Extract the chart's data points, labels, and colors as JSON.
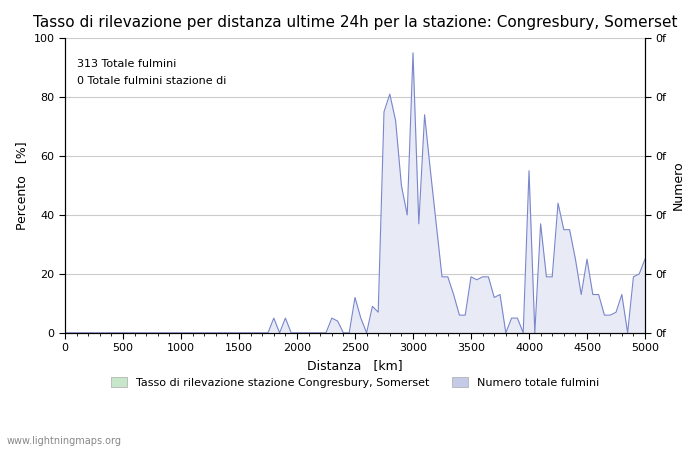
{
  "title": "Tasso di rilevazione per distanza ultime 24h per la stazione: Congresbury, Somerset",
  "xlabel": "Distanza   [km]",
  "ylabel_left": "Percento   [%]",
  "ylabel_right": "Numero",
  "annotation_line1": "313 Totale fulmini",
  "annotation_line2": "0 Totale fulmini stazione di",
  "watermark": "www.lightningmaps.org",
  "xlim": [
    0,
    5000
  ],
  "ylim": [
    0,
    100
  ],
  "xticks": [
    0,
    500,
    1000,
    1500,
    2000,
    2500,
    3000,
    3500,
    4000,
    4500,
    5000
  ],
  "yticks_left": [
    0,
    20,
    40,
    60,
    80,
    100
  ],
  "yticks_right_labels": [
    "0f",
    "0f",
    "0f",
    "0f",
    "0f",
    "0f",
    "0f",
    "0f",
    "0f",
    "0f",
    "0f"
  ],
  "legend_label1": "Tasso di rilevazione stazione Congresbury, Somerset",
  "legend_label2": "Numero totale fulmini",
  "legend_color1": "#c8e6c9",
  "legend_color2": "#c5cae9",
  "line_color": "#7986cb",
  "fill_color": "#e8eaf6",
  "green_fill_color": "#c8e6c9",
  "background_color": "#ffffff",
  "grid_color": "#cccccc",
  "title_fontsize": 11,
  "label_fontsize": 9,
  "tick_fontsize": 8,
  "distances": [
    0,
    50,
    100,
    150,
    200,
    250,
    300,
    350,
    400,
    450,
    500,
    550,
    600,
    650,
    700,
    750,
    800,
    850,
    900,
    950,
    1000,
    1050,
    1100,
    1150,
    1200,
    1250,
    1300,
    1350,
    1400,
    1450,
    1500,
    1550,
    1600,
    1650,
    1700,
    1750,
    1800,
    1850,
    1900,
    1950,
    2000,
    2050,
    2100,
    2150,
    2200,
    2250,
    2300,
    2350,
    2400,
    2450,
    2500,
    2550,
    2600,
    2650,
    2700,
    2750,
    2800,
    2850,
    2900,
    2950,
    3000,
    3050,
    3100,
    3150,
    3200,
    3250,
    3300,
    3350,
    3400,
    3450,
    3500,
    3550,
    3600,
    3650,
    3700,
    3750,
    3800,
    3850,
    3900,
    3950,
    4000,
    4050,
    4100,
    4150,
    4200,
    4250,
    4300,
    4350,
    4400,
    4450,
    4500,
    4550,
    4600,
    4650,
    4700,
    4750,
    4800,
    4850,
    4900,
    4950,
    5000
  ],
  "detection_rate": [
    0,
    0,
    0,
    0,
    0,
    0,
    0,
    0,
    0,
    0,
    0,
    0,
    0,
    0,
    0,
    0,
    0,
    0,
    0,
    0,
    0,
    0,
    0,
    0,
    0,
    0,
    0,
    0,
    0,
    0,
    0,
    0,
    0,
    0,
    0,
    0,
    0,
    0,
    0,
    0,
    0,
    0,
    0,
    0,
    0,
    0,
    0,
    0,
    0,
    0,
    0,
    0,
    0,
    0,
    0,
    0,
    0,
    0,
    0,
    0,
    0,
    0,
    0,
    0,
    0,
    0,
    0,
    0,
    0,
    0,
    0,
    0,
    0,
    0,
    0,
    0,
    0,
    0,
    0,
    0,
    0,
    0,
    0,
    0,
    0,
    0,
    0,
    0,
    0,
    0,
    0,
    0,
    0,
    0,
    0,
    0,
    0,
    0,
    0,
    0,
    0
  ],
  "lightning_count": [
    0,
    0,
    0,
    0,
    0,
    0,
    0,
    0,
    0,
    0,
    0,
    0,
    0,
    0,
    0,
    0,
    0,
    0,
    0,
    0,
    0,
    0,
    0,
    0,
    0,
    0,
    0,
    0,
    0,
    0,
    0,
    0,
    0,
    0,
    0,
    0,
    5,
    0,
    5,
    0,
    0,
    0,
    0,
    0,
    0,
    0,
    5,
    4,
    0,
    0,
    12,
    5,
    0,
    9,
    7,
    75,
    81,
    72,
    50,
    40,
    95,
    37,
    74,
    55,
    37,
    19,
    19,
    13,
    6,
    6,
    19,
    18,
    19,
    19,
    12,
    13,
    0,
    5,
    5,
    0,
    55,
    0,
    37,
    19,
    19,
    44,
    35,
    35,
    25,
    13,
    25,
    13,
    13,
    6,
    6,
    7,
    13,
    0,
    19,
    20,
    25
  ]
}
